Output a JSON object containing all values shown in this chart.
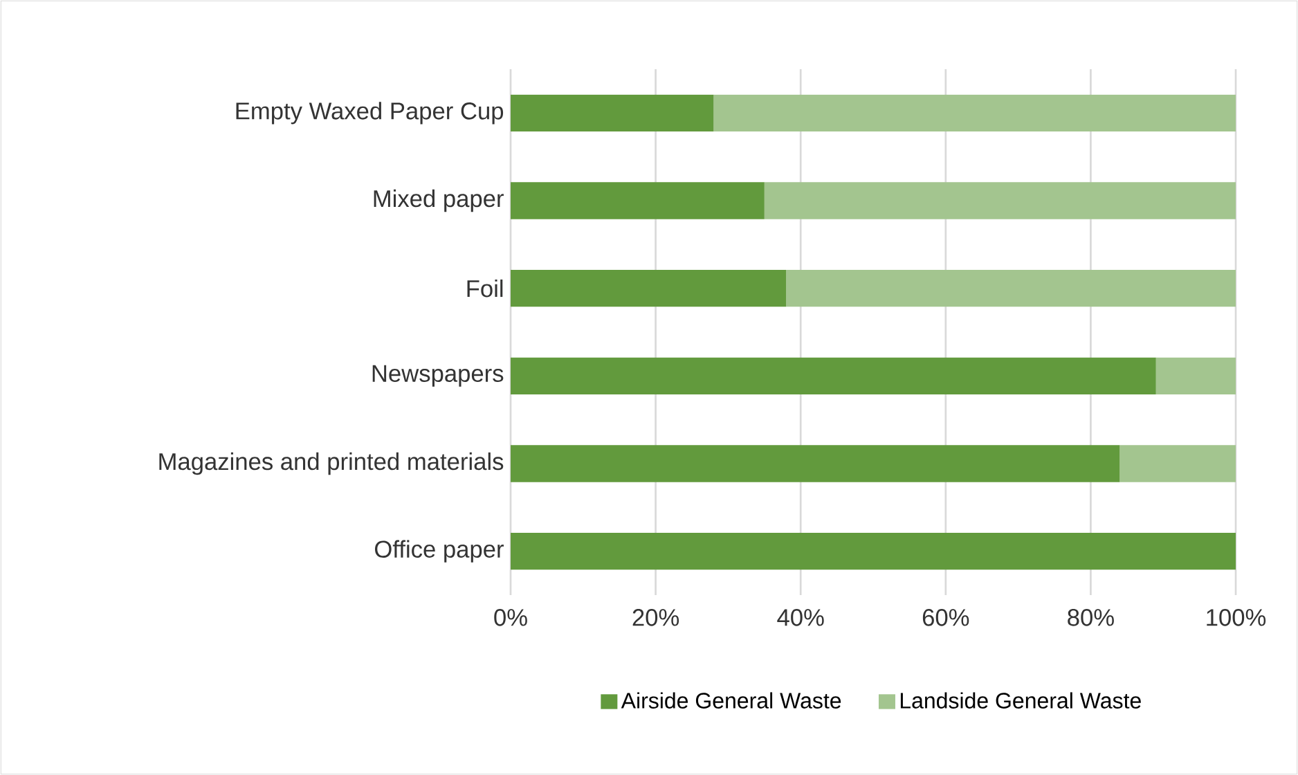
{
  "chart_data": {
    "type": "bar",
    "orientation": "horizontal",
    "stacked": true,
    "categories": [
      "Empty Waxed Paper Cup",
      "Mixed paper",
      "Foil",
      "Newspapers",
      "Magazines and printed materials",
      "Office paper"
    ],
    "series": [
      {
        "name": "Airside General Waste",
        "color": "#629a3d",
        "values": [
          28,
          35,
          38,
          89,
          84,
          100
        ]
      },
      {
        "name": "Landside General Waste",
        "color": "#a3c58f",
        "values": [
          72,
          65,
          62,
          11,
          16,
          0
        ]
      }
    ],
    "xlim": [
      0,
      100
    ],
    "xticks": [
      {
        "value": 0,
        "label": "0%"
      },
      {
        "value": 20,
        "label": "20%"
      },
      {
        "value": 40,
        "label": "40%"
      },
      {
        "value": 60,
        "label": "60%"
      },
      {
        "value": 80,
        "label": "80%"
      },
      {
        "value": 100,
        "label": "100%"
      }
    ],
    "grid": "x",
    "legend": "bottom"
  }
}
